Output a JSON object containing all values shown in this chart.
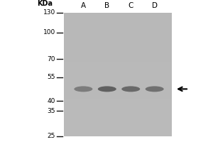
{
  "white_color": "#ffffff",
  "black_color": "#000000",
  "gel_color": "#b8b8b8",
  "ladder_labels": [
    "130",
    "100",
    "70",
    "55",
    "40",
    "35",
    "25"
  ],
  "ladder_kda": [
    130,
    100,
    70,
    55,
    40,
    35,
    25
  ],
  "lane_labels": [
    "A",
    "B",
    "C",
    "D"
  ],
  "band_kda": 47,
  "band_alphas": [
    0.55,
    0.8,
    0.72,
    0.65
  ],
  "band_color": "#4a4a4a",
  "font_size_ladder": 6.5,
  "font_size_lane": 7.5,
  "font_size_kda": 7.0,
  "ladder_line_color": "#111111",
  "arrow_color": "#000000"
}
